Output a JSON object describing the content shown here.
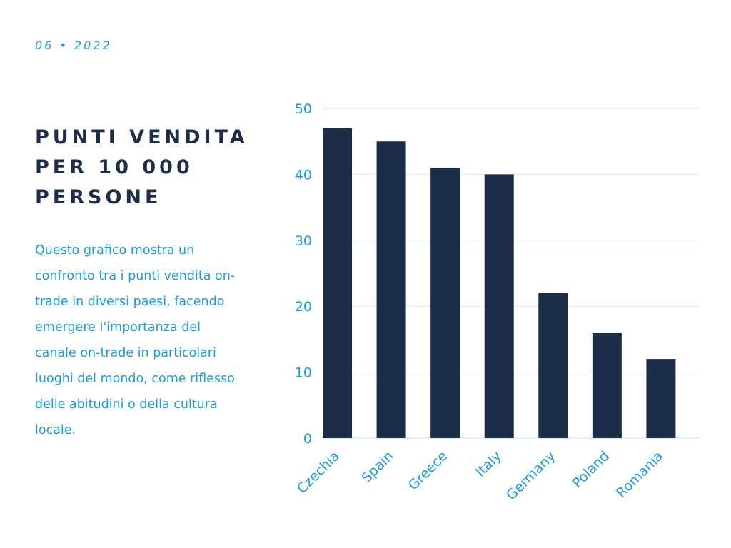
{
  "header": {
    "date": "06 • 2022"
  },
  "title_lines": [
    "PUNTI VENDITA",
    "PER 10 000",
    "PERSONE"
  ],
  "description_lines": [
    "Questo grafico mostra un",
    "confronto tra i punti vendita on-",
    "trade in diversi paesi, facendo",
    "emergere l'importanza del",
    "canale on-trade in particolari",
    "luoghi del mondo, come riflesso",
    "delle abitudini o della cultura",
    "locale."
  ],
  "colors": {
    "bar": "#1c2e47",
    "accent": "#1a9be6",
    "grid": "#d4ebf7"
  },
  "chart_data": {
    "type": "bar",
    "categories": [
      "Czechia",
      "Spain",
      "Greece",
      "Italy",
      "Germany",
      "Poland",
      "Romania"
    ],
    "values": [
      47,
      45,
      41,
      40,
      22,
      16,
      12
    ],
    "ylim": [
      0,
      50
    ],
    "yticks": [
      0,
      10,
      20,
      30,
      40,
      50
    ],
    "grid": true,
    "xlabel": "",
    "ylabel": ""
  }
}
